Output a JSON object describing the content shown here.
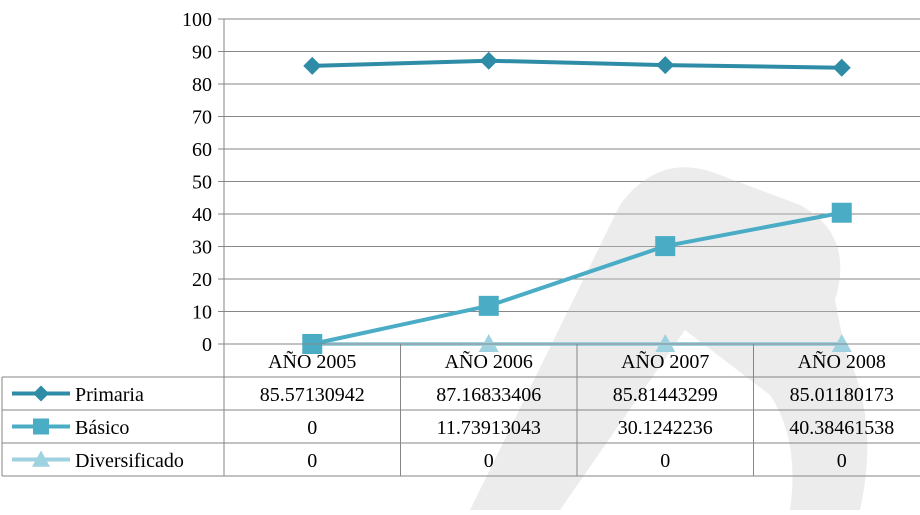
{
  "chart_data": {
    "type": "line",
    "title": "",
    "xlabel": "",
    "ylabel": "",
    "categories": [
      "AÑO 2005",
      "AÑO 2006",
      "AÑO 2007",
      "AÑO 2008"
    ],
    "ylim": [
      0,
      100
    ],
    "yticks": [
      0,
      10,
      20,
      30,
      40,
      50,
      60,
      70,
      80,
      90,
      100
    ],
    "grid": true,
    "legend": "data-table-left",
    "series": [
      {
        "name": "Primaria",
        "values": [
          85.57130942,
          87.16833406,
          85.81443299,
          85.01180173
        ],
        "labels": [
          "85.57130942",
          "87.16833406",
          "85.81443299",
          "85.01180173"
        ],
        "color": "#2E8CA6",
        "marker": "diamond"
      },
      {
        "name": "Básico",
        "values": [
          0,
          11.73913043,
          30.1242236,
          40.38461538
        ],
        "labels": [
          "0",
          "11.73913043",
          "30.1242236",
          "40.38461538"
        ],
        "color": "#4BACC6",
        "marker": "square"
      },
      {
        "name": "Diversificado",
        "values": [
          0,
          0,
          0,
          0
        ],
        "labels": [
          "0",
          "0",
          "0",
          "0"
        ],
        "color": "#9FD2E0",
        "marker": "triangle"
      }
    ]
  }
}
